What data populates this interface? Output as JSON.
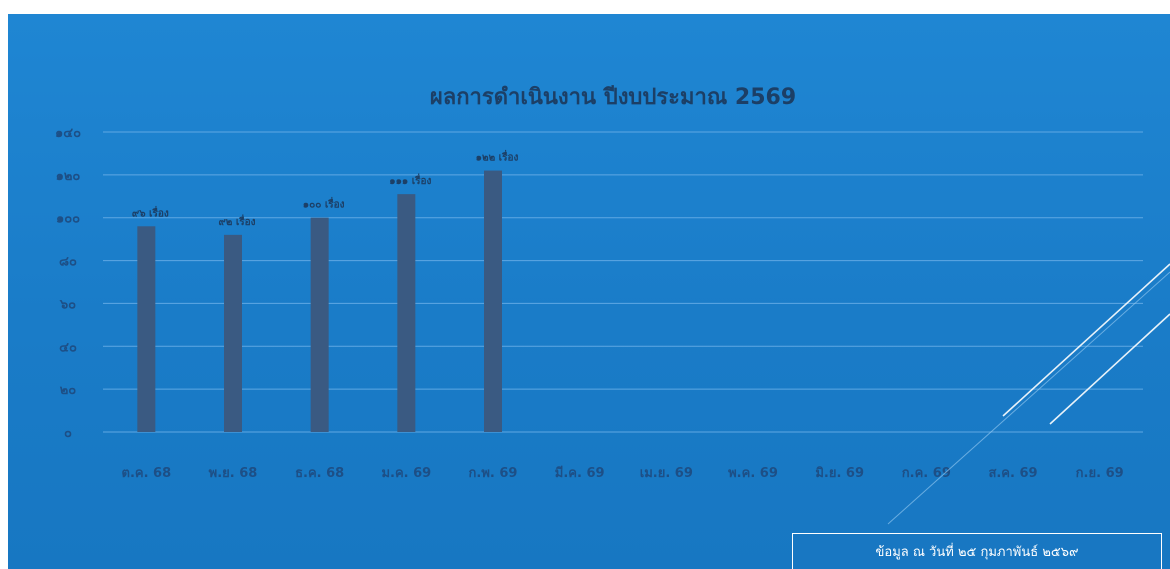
{
  "chart_data": {
    "type": "bar",
    "title": "ผลการดำเนินงาน ปีงบประมาณ 2569",
    "categories": [
      "ต.ค. 68",
      "พ.ย. 68",
      "ธ.ค. 68",
      "ม.ค. 69",
      "ก.พ. 69",
      "มี.ค. 69",
      "เม.ย. 69",
      "พ.ค. 69",
      "มิ.ย. 69",
      "ก.ค. 69",
      "ส.ค. 69",
      "ก.ย. 69"
    ],
    "values": [
      96,
      92,
      100,
      111,
      122,
      null,
      null,
      null,
      null,
      null,
      null,
      null
    ],
    "data_labels": [
      "๙๖ เรื่อง",
      "๙๒ เรื่อง",
      "๑๐๐ เรื่อง",
      "๑๑๑ เรื่อง",
      "๑๒๒ เรื่อง",
      "",
      "",
      "",
      "",
      "",
      "",
      ""
    ],
    "ylim": [
      0,
      140
    ],
    "yticks": [
      0,
      20,
      40,
      60,
      80,
      100,
      120,
      140
    ],
    "ytick_labels": [
      "๐",
      "๒๐",
      "๔๐",
      "๖๐",
      "๘๐",
      "๑๐๐",
      "๑๒๐",
      "๑๔๐"
    ],
    "xlabel": "",
    "ylabel": "",
    "grid": true,
    "bar_color": "#3a5a82",
    "gridline_color": "#5fa8e3"
  },
  "footnote": "ข้อมูล ณ วันที่ ๒๕ กุมภาพันธ์ ๒๕๖๙"
}
